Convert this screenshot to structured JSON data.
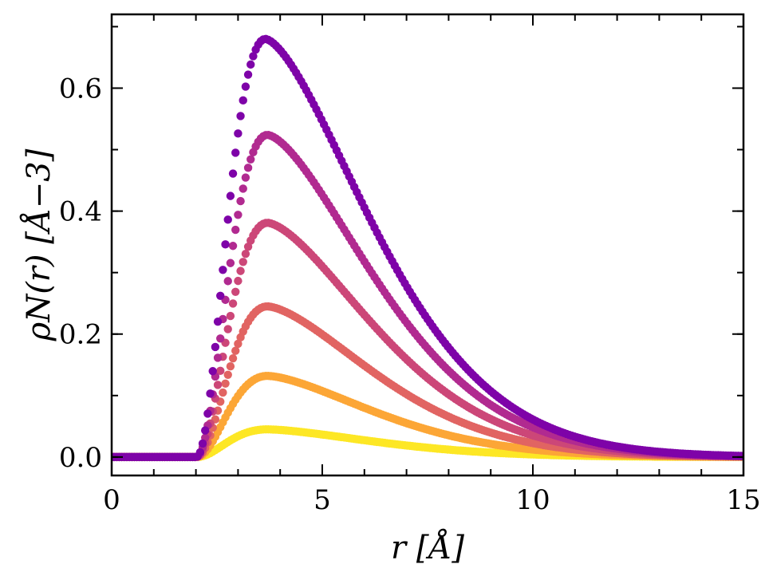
{
  "chart_data": {
    "type": "scatter",
    "title": "",
    "xlabel": "r [Å]",
    "ylabel": "ρN(r) [Å−3]",
    "xlim": [
      0,
      15
    ],
    "ylim": [
      -0.03,
      0.72
    ],
    "x_ticks": [
      0,
      5,
      10,
      15
    ],
    "x_tick_labels": [
      "0",
      "5",
      "10",
      "15"
    ],
    "y_ticks": [
      0.0,
      0.2,
      0.4,
      0.6
    ],
    "y_tick_labels": [
      "0.0",
      "0.2",
      "0.4",
      "0.6"
    ],
    "x_minor_step": 1,
    "y_minor_step": 0.1,
    "grid": false,
    "legend": "none",
    "x_sampling": {
      "start": 0,
      "stop": 15,
      "step": 0.06
    },
    "series": [
      {
        "color": "#fde725",
        "peak_x": 3.7,
        "peak_y": 0.045,
        "onset_x": 2.0,
        "tail_end_x": 15.0
      },
      {
        "color": "#fca636",
        "peak_x": 3.7,
        "peak_y": 0.132,
        "onset_x": 2.0,
        "tail_end_x": 15.0
      },
      {
        "color": "#e16462",
        "peak_x": 3.7,
        "peak_y": 0.245,
        "onset_x": 2.0,
        "tail_end_x": 15.0
      },
      {
        "color": "#cc4778",
        "peak_x": 3.7,
        "peak_y": 0.381,
        "onset_x": 2.0,
        "tail_end_x": 15.0
      },
      {
        "color": "#b12a90",
        "peak_x": 3.7,
        "peak_y": 0.524,
        "onset_x": 2.0,
        "tail_end_x": 15.0
      },
      {
        "color": "#7e03a8",
        "peak_x": 3.65,
        "peak_y": 0.68,
        "onset_x": 2.0,
        "tail_end_x": 15.0
      }
    ]
  }
}
